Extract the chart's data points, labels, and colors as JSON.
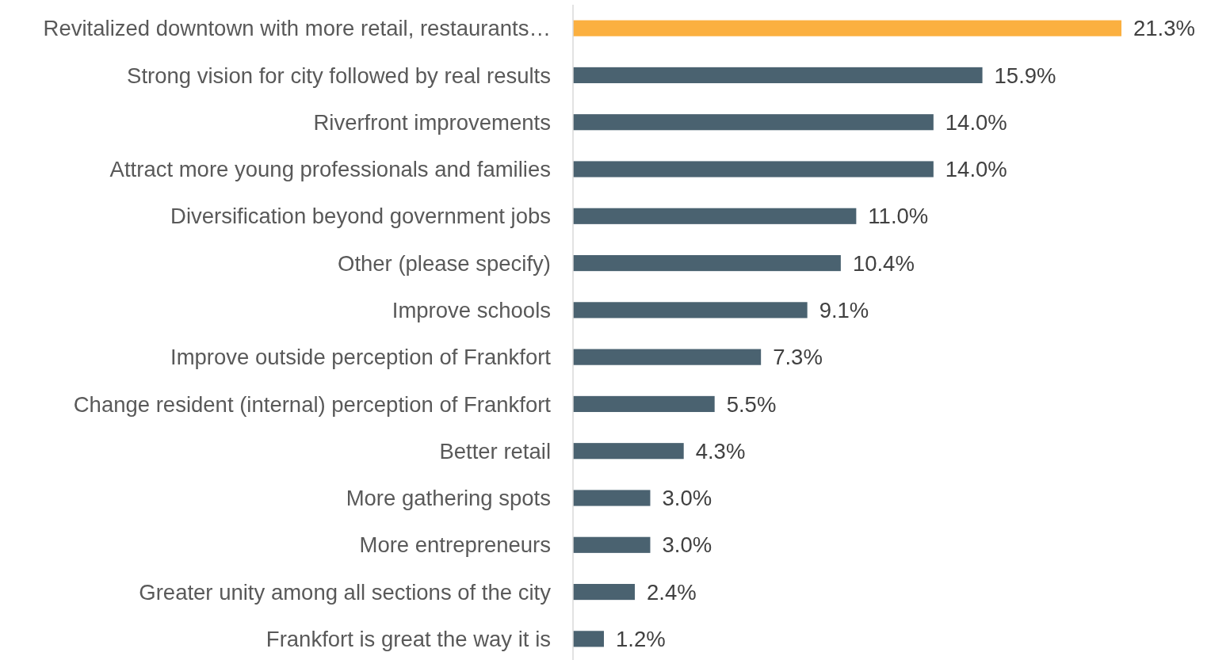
{
  "chart_data": {
    "type": "bar",
    "orientation": "horizontal",
    "categories": [
      "Revitalized downtown with more retail, restaurants…",
      "Strong vision for city followed by real results",
      "Riverfront improvements",
      "Attract more young professionals and families",
      "Diversification beyond government jobs",
      "Other (please specify)",
      "Improve schools",
      "Improve outside perception of Frankfort",
      "Change resident (internal) perception of Frankfort",
      "Better retail",
      "More gathering spots",
      "More entrepreneurs",
      "Greater unity among all sections of the city",
      "Frankfort is great the way it is"
    ],
    "values": [
      21.3,
      15.9,
      14.0,
      14.0,
      11.0,
      10.4,
      9.1,
      7.3,
      5.5,
      4.3,
      3.0,
      3.0,
      2.4,
      1.2
    ],
    "value_labels": [
      "21.3%",
      "15.9%",
      "14.0%",
      "14.0%",
      "11.0%",
      "10.4%",
      "9.1%",
      "7.3%",
      "5.5%",
      "4.3%",
      "3.0%",
      "3.0%",
      "2.4%",
      "1.2%"
    ],
    "colors": [
      "#fbb040",
      "#4a6270",
      "#4a6270",
      "#4a6270",
      "#4a6270",
      "#4a6270",
      "#4a6270",
      "#4a6270",
      "#4a6270",
      "#4a6270",
      "#4a6270",
      "#4a6270",
      "#4a6270",
      "#4a6270"
    ]
  }
}
